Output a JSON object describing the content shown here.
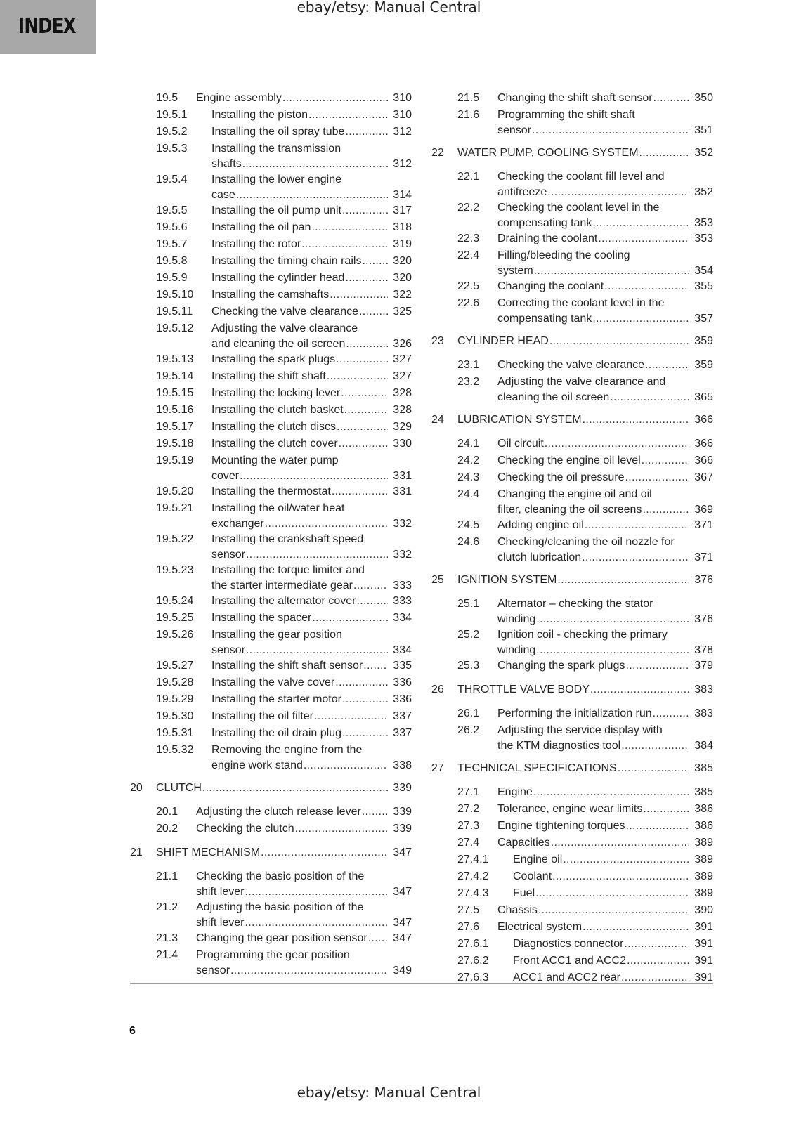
{
  "header": {
    "section_tab": "INDEX",
    "watermark": "ebay/etsy: Manual Central"
  },
  "footer": {
    "page_number": "6",
    "watermark": "ebay/etsy: Manual Central"
  },
  "colors": {
    "index_tab": "#a8a8a8",
    "text": "#262626",
    "rule": "#9a9a9a"
  },
  "left_column": [
    {
      "level": 2,
      "num": "19.5",
      "lines": [
        "Engine assembly"
      ],
      "page": "310"
    },
    {
      "level": 3,
      "num": "19.5.1",
      "lines": [
        "Installing the piston"
      ],
      "page": "310"
    },
    {
      "level": 3,
      "num": "19.5.2",
      "lines": [
        "Installing the oil spray tube"
      ],
      "page": "312"
    },
    {
      "level": 3,
      "num": "19.5.3",
      "lines": [
        "Installing the transmission",
        "shafts"
      ],
      "page": "312"
    },
    {
      "level": 3,
      "num": "19.5.4",
      "lines": [
        "Installing the lower engine",
        "case"
      ],
      "page": "314"
    },
    {
      "level": 3,
      "num": "19.5.5",
      "lines": [
        "Installing the oil pump unit"
      ],
      "page": "317"
    },
    {
      "level": 3,
      "num": "19.5.6",
      "lines": [
        "Installing the oil pan"
      ],
      "page": "318"
    },
    {
      "level": 3,
      "num": "19.5.7",
      "lines": [
        "Installing the rotor"
      ],
      "page": "319"
    },
    {
      "level": 3,
      "num": "19.5.8",
      "lines": [
        "Installing the timing chain rails"
      ],
      "page": "320"
    },
    {
      "level": 3,
      "num": "19.5.9",
      "lines": [
        "Installing the cylinder head"
      ],
      "page": "320"
    },
    {
      "level": 3,
      "num": "19.5.10",
      "lines": [
        "Installing the camshafts"
      ],
      "page": "322"
    },
    {
      "level": 3,
      "num": "19.5.11",
      "lines": [
        "Checking the valve clearance"
      ],
      "page": "325"
    },
    {
      "level": 3,
      "num": "19.5.12",
      "lines": [
        "Adjusting the valve clearance",
        "and cleaning the oil screen"
      ],
      "page": "326"
    },
    {
      "level": 3,
      "num": "19.5.13",
      "lines": [
        "Installing the spark plugs"
      ],
      "page": "327"
    },
    {
      "level": 3,
      "num": "19.5.14",
      "lines": [
        "Installing the shift shaft"
      ],
      "page": "327"
    },
    {
      "level": 3,
      "num": "19.5.15",
      "lines": [
        "Installing the locking lever"
      ],
      "page": "328"
    },
    {
      "level": 3,
      "num": "19.5.16",
      "lines": [
        "Installing the clutch basket"
      ],
      "page": "328"
    },
    {
      "level": 3,
      "num": "19.5.17",
      "lines": [
        "Installing the clutch discs"
      ],
      "page": "329"
    },
    {
      "level": 3,
      "num": "19.5.18",
      "lines": [
        "Installing the clutch cover"
      ],
      "page": "330"
    },
    {
      "level": 3,
      "num": "19.5.19",
      "lines": [
        "Mounting the water pump",
        "cover"
      ],
      "page": "331"
    },
    {
      "level": 3,
      "num": "19.5.20",
      "lines": [
        "Installing the thermostat"
      ],
      "page": "331"
    },
    {
      "level": 3,
      "num": "19.5.21",
      "lines": [
        "Installing the oil/water heat",
        "exchanger"
      ],
      "page": "332"
    },
    {
      "level": 3,
      "num": "19.5.22",
      "lines": [
        "Installing the crankshaft speed",
        "sensor"
      ],
      "page": "332"
    },
    {
      "level": 3,
      "num": "19.5.23",
      "lines": [
        "Installing the torque limiter and",
        "the starter intermediate gear"
      ],
      "page": "333"
    },
    {
      "level": 3,
      "num": "19.5.24",
      "lines": [
        "Installing the alternator cover"
      ],
      "page": "333"
    },
    {
      "level": 3,
      "num": "19.5.25",
      "lines": [
        "Installing the spacer"
      ],
      "page": "334"
    },
    {
      "level": 3,
      "num": "19.5.26",
      "lines": [
        "Installing the gear position",
        "sensor"
      ],
      "page": "334"
    },
    {
      "level": 3,
      "num": "19.5.27",
      "lines": [
        "Installing the shift shaft sensor"
      ],
      "page": "335"
    },
    {
      "level": 3,
      "num": "19.5.28",
      "lines": [
        "Installing the valve cover"
      ],
      "page": "336"
    },
    {
      "level": 3,
      "num": "19.5.29",
      "lines": [
        "Installing the starter motor"
      ],
      "page": "336"
    },
    {
      "level": 3,
      "num": "19.5.30",
      "lines": [
        "Installing the oil filter"
      ],
      "page": "337"
    },
    {
      "level": 3,
      "num": "19.5.31",
      "lines": [
        "Installing the oil drain plug"
      ],
      "page": "337"
    },
    {
      "level": 3,
      "num": "19.5.32",
      "lines": [
        "Removing the engine from the",
        "engine work stand"
      ],
      "page": "338"
    },
    {
      "level": 1,
      "num": "20",
      "lines": [
        "CLUTCH"
      ],
      "page": "339"
    },
    {
      "level": 2,
      "num": "20.1",
      "lines": [
        "Adjusting the clutch release lever"
      ],
      "page": "339"
    },
    {
      "level": 2,
      "num": "20.2",
      "lines": [
        "Checking the clutch"
      ],
      "page": "339"
    },
    {
      "level": 1,
      "num": "21",
      "lines": [
        "SHIFT MECHANISM"
      ],
      "page": "347"
    },
    {
      "level": 2,
      "num": "21.1",
      "lines": [
        "Checking the basic position of the",
        "shift lever"
      ],
      "page": "347"
    },
    {
      "level": 2,
      "num": "21.2",
      "lines": [
        "Adjusting the basic position of the",
        "shift lever"
      ],
      "page": "347"
    },
    {
      "level": 2,
      "num": "21.3",
      "lines": [
        "Changing the gear position sensor"
      ],
      "page": "347"
    },
    {
      "level": 2,
      "num": "21.4",
      "lines": [
        "Programming the gear position",
        "sensor"
      ],
      "page": "349"
    }
  ],
  "right_column": [
    {
      "level": 2,
      "num": "21.5",
      "lines": [
        "Changing the shift shaft sensor"
      ],
      "page": "350"
    },
    {
      "level": 2,
      "num": "21.6",
      "lines": [
        "Programming the shift shaft",
        "sensor"
      ],
      "page": "351"
    },
    {
      "level": 1,
      "num": "22",
      "lines": [
        "WATER PUMP, COOLING SYSTEM"
      ],
      "page": "352"
    },
    {
      "level": 2,
      "num": "22.1",
      "lines": [
        "Checking the coolant fill level and",
        "antifreeze"
      ],
      "page": "352"
    },
    {
      "level": 2,
      "num": "22.2",
      "lines": [
        "Checking the coolant level in the",
        "compensating tank"
      ],
      "page": "353"
    },
    {
      "level": 2,
      "num": "22.3",
      "lines": [
        "Draining the coolant"
      ],
      "page": "353"
    },
    {
      "level": 2,
      "num": "22.4",
      "lines": [
        "Filling/bleeding the cooling",
        "system"
      ],
      "page": "354"
    },
    {
      "level": 2,
      "num": "22.5",
      "lines": [
        "Changing the coolant"
      ],
      "page": "355"
    },
    {
      "level": 2,
      "num": "22.6",
      "lines": [
        "Correcting the coolant level in the",
        "compensating tank"
      ],
      "page": "357"
    },
    {
      "level": 1,
      "num": "23",
      "lines": [
        "CYLINDER HEAD"
      ],
      "page": "359"
    },
    {
      "level": 2,
      "num": "23.1",
      "lines": [
        "Checking the valve clearance"
      ],
      "page": "359"
    },
    {
      "level": 2,
      "num": "23.2",
      "lines": [
        "Adjusting the valve clearance and",
        "cleaning the oil screen"
      ],
      "page": "365"
    },
    {
      "level": 1,
      "num": "24",
      "lines": [
        "LUBRICATION SYSTEM"
      ],
      "page": "366"
    },
    {
      "level": 2,
      "num": "24.1",
      "lines": [
        "Oil circuit"
      ],
      "page": "366"
    },
    {
      "level": 2,
      "num": "24.2",
      "lines": [
        "Checking the engine oil level"
      ],
      "page": "366"
    },
    {
      "level": 2,
      "num": "24.3",
      "lines": [
        "Checking the oil pressure"
      ],
      "page": "367"
    },
    {
      "level": 2,
      "num": "24.4",
      "lines": [
        "Changing the engine oil and oil",
        "filter, cleaning the oil screens"
      ],
      "page": "369"
    },
    {
      "level": 2,
      "num": "24.5",
      "lines": [
        "Adding engine oil"
      ],
      "page": "371"
    },
    {
      "level": 2,
      "num": "24.6",
      "lines": [
        "Checking/cleaning the oil nozzle for",
        "clutch lubrication"
      ],
      "page": "371"
    },
    {
      "level": 1,
      "num": "25",
      "lines": [
        "IGNITION SYSTEM"
      ],
      "page": "376"
    },
    {
      "level": 2,
      "num": "25.1",
      "lines": [
        "Alternator – checking the stator",
        "winding"
      ],
      "page": "376"
    },
    {
      "level": 2,
      "num": "25.2",
      "lines": [
        "Ignition coil - checking the primary",
        "winding"
      ],
      "page": "378"
    },
    {
      "level": 2,
      "num": "25.3",
      "lines": [
        "Changing the spark plugs"
      ],
      "page": "379"
    },
    {
      "level": 1,
      "num": "26",
      "lines": [
        "THROTTLE VALVE BODY"
      ],
      "page": "383"
    },
    {
      "level": 2,
      "num": "26.1",
      "lines": [
        "Performing the initialization run"
      ],
      "page": "383"
    },
    {
      "level": 2,
      "num": "26.2",
      "lines": [
        "Adjusting the service display with",
        "the KTM diagnostics tool"
      ],
      "page": "384"
    },
    {
      "level": 1,
      "num": "27",
      "lines": [
        "TECHNICAL SPECIFICATIONS"
      ],
      "page": "385"
    },
    {
      "level": 2,
      "num": "27.1",
      "lines": [
        "Engine"
      ],
      "page": "385"
    },
    {
      "level": 2,
      "num": "27.2",
      "lines": [
        "Tolerance, engine wear limits"
      ],
      "page": "386"
    },
    {
      "level": 2,
      "num": "27.3",
      "lines": [
        "Engine tightening torques"
      ],
      "page": "386"
    },
    {
      "level": 2,
      "num": "27.4",
      "lines": [
        "Capacities"
      ],
      "page": "389"
    },
    {
      "level": 3,
      "num": "27.4.1",
      "lines": [
        "Engine oil"
      ],
      "page": "389"
    },
    {
      "level": 3,
      "num": "27.4.2",
      "lines": [
        "Coolant"
      ],
      "page": "389"
    },
    {
      "level": 3,
      "num": "27.4.3",
      "lines": [
        "Fuel"
      ],
      "page": "389"
    },
    {
      "level": 2,
      "num": "27.5",
      "lines": [
        "Chassis"
      ],
      "page": "390"
    },
    {
      "level": 2,
      "num": "27.6",
      "lines": [
        "Electrical system"
      ],
      "page": "391"
    },
    {
      "level": 3,
      "num": "27.6.1",
      "lines": [
        "Diagnostics connector"
      ],
      "page": "391"
    },
    {
      "level": 3,
      "num": "27.6.2",
      "lines": [
        "Front ACC1 and ACC2"
      ],
      "page": "391"
    },
    {
      "level": 3,
      "num": "27.6.3",
      "lines": [
        "ACC1 and ACC2 rear"
      ],
      "page": "391"
    }
  ]
}
